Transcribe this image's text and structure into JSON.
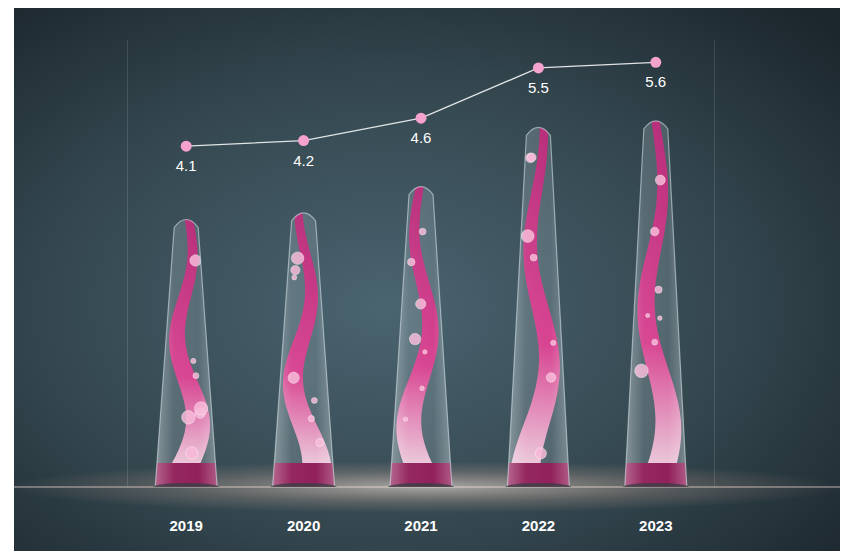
{
  "chart_data": {
    "type": "bar",
    "categories": [
      "2019",
      "2020",
      "2021",
      "2022",
      "2023"
    ],
    "series": [
      {
        "type": "bar",
        "color": "#e8348f",
        "values": [
          4.1,
          4.2,
          4.6,
          5.5,
          5.6
        ]
      },
      {
        "type": "line",
        "axis": "y2",
        "color": "#f5a3cc",
        "marker": "circle",
        "values": [
          4.1,
          4.2,
          4.6,
          5.5,
          5.6
        ]
      }
    ],
    "ylim": [
      0,
      6.8
    ],
    "y2lim": [
      -2,
      6
    ],
    "grid": false,
    "data_labels": true,
    "tick_labels": "x"
  }
}
